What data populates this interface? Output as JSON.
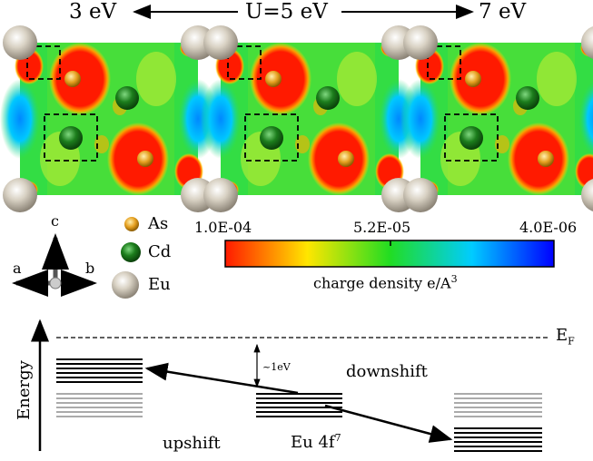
{
  "header": {
    "left": "3 eV",
    "center": "U=5 eV",
    "right": "7 eV"
  },
  "panels": [
    {
      "u_label": "3 eV"
    },
    {
      "u_label": "5 eV"
    },
    {
      "u_label": "7 eV"
    }
  ],
  "axes": {
    "c": "c",
    "a": "a",
    "b": "b"
  },
  "atom_legend": [
    {
      "label": "As",
      "color": "#e6a020"
    },
    {
      "label": "Cd",
      "color": "#1c7d1c"
    },
    {
      "label": "Eu",
      "color": "#cfc7b8"
    }
  ],
  "colorbar": {
    "tick_left": "1.0E-04",
    "tick_mid": "5.2E-05",
    "tick_right": "4.0E-06",
    "label_main": "charge density e/A",
    "label_sup": "3",
    "colors": [
      "#ff1a00",
      "#ffe600",
      "#22dd22",
      "#00ccff",
      "#0000ff"
    ]
  },
  "energy_diagram": {
    "ylabel": "Energy",
    "fermi_label": "E",
    "fermi_sub": "F",
    "gap_label": "~1eV",
    "downshift_label": "downshift",
    "upshift_label": "upshift",
    "center_label_main": "Eu 4f",
    "center_label_sup": "7"
  }
}
